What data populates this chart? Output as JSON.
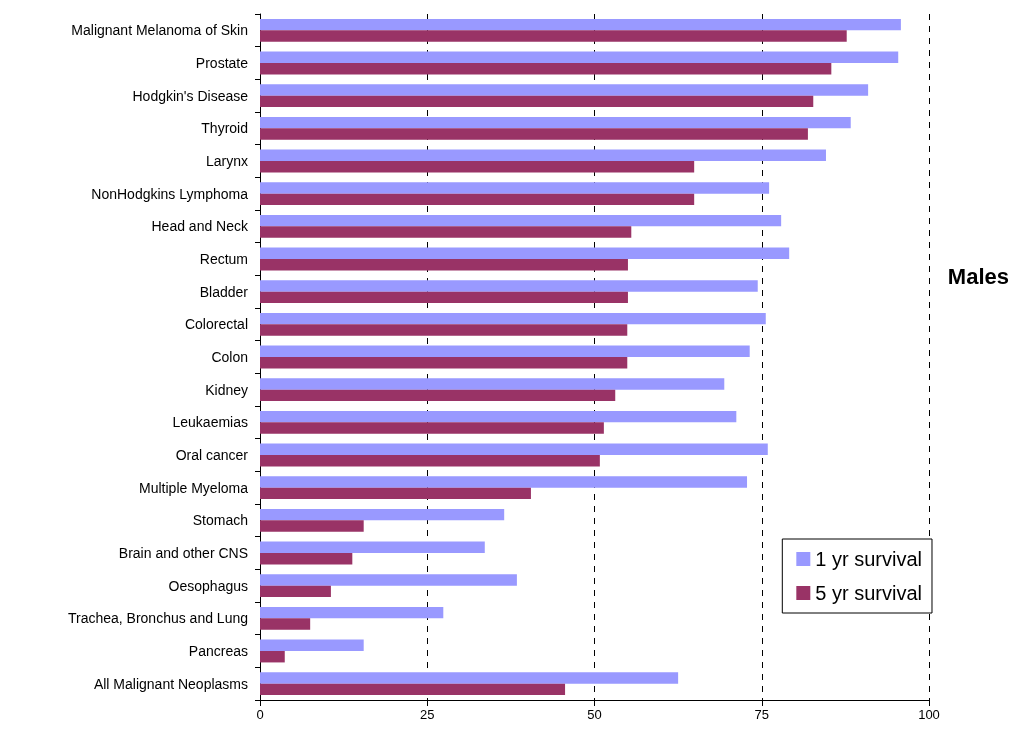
{
  "chart_data": {
    "type": "bar",
    "orientation": "horizontal",
    "categories": [
      "Malignant Melanoma of Skin",
      "Prostate",
      "Hodgkin's Disease",
      "Thyroid",
      "Larynx",
      "NonHodgkins Lymphoma",
      "Head and Neck",
      "Rectum",
      "Bladder",
      "Colorectal",
      "Colon",
      "Kidney",
      "Leukaemias",
      "Oral cancer",
      "Multiple Myeloma",
      "Stomach",
      "Brain and other CNS",
      "Oesophagus",
      "Trachea, Bronchus and Lung",
      "Pancreas",
      "All Malignant Neoplasms"
    ],
    "series": [
      {
        "name": "1 yr survival",
        "color": "#9999ff",
        "values": [
          95.8,
          95.4,
          90.9,
          88.3,
          84.6,
          76.1,
          77.9,
          79.1,
          74.4,
          75.6,
          73.2,
          69.4,
          71.2,
          75.9,
          72.8,
          36.5,
          33.6,
          38.4,
          27.4,
          15.5,
          62.5
        ]
      },
      {
        "name": "5 yr survival",
        "color": "#993366",
        "values": [
          87.7,
          85.4,
          82.7,
          81.9,
          64.9,
          64.9,
          55.5,
          55.0,
          55.0,
          54.9,
          54.9,
          53.1,
          51.4,
          50.8,
          40.5,
          15.5,
          13.8,
          10.6,
          7.5,
          3.7,
          45.6
        ]
      }
    ],
    "xlim": [
      0,
      100
    ],
    "xticks": [
      0,
      25,
      50,
      75,
      100
    ],
    "grid": "x",
    "legend": "bottom right",
    "annotations": [
      "Males"
    ]
  }
}
